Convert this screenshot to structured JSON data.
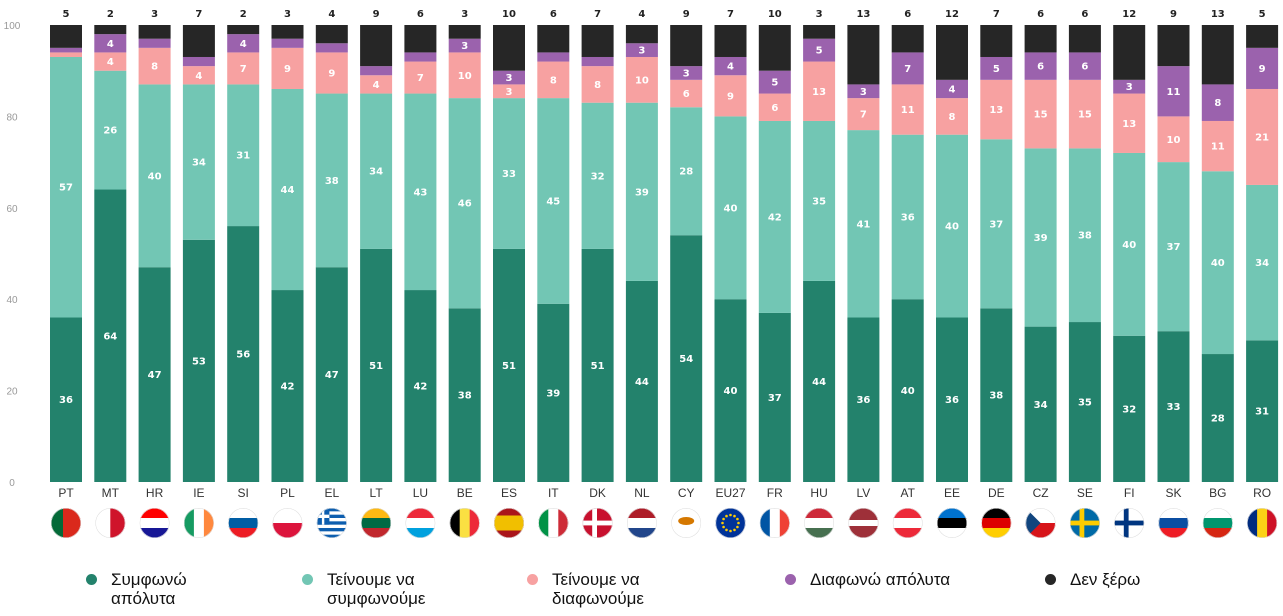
{
  "chart_data": {
    "type": "bar",
    "stacked": true,
    "ylim": [
      0,
      100
    ],
    "yticks": [
      0,
      20,
      40,
      60,
      80,
      100
    ],
    "categories": [
      "PT",
      "MT",
      "HR",
      "IE",
      "SI",
      "PL",
      "EL",
      "LT",
      "LU",
      "BE",
      "ES",
      "IT",
      "DK",
      "NL",
      "CY",
      "EU27",
      "FR",
      "HU",
      "LV",
      "AT",
      "EE",
      "DE",
      "CZ",
      "SE",
      "FI",
      "SK",
      "BG",
      "RO"
    ],
    "series": [
      {
        "name": "Συμφωνώ απόλυτα",
        "color": "#23826c",
        "values": [
          36,
          64,
          47,
          53,
          56,
          42,
          47,
          51,
          42,
          38,
          51,
          39,
          51,
          44,
          54,
          40,
          37,
          44,
          36,
          40,
          36,
          38,
          34,
          35,
          32,
          33,
          28,
          31
        ]
      },
      {
        "name": "Τείνουμε να συμφωνούμε",
        "color": "#72c6b4",
        "values": [
          57,
          26,
          40,
          34,
          31,
          44,
          38,
          34,
          43,
          46,
          33,
          45,
          32,
          39,
          28,
          40,
          42,
          35,
          41,
          36,
          40,
          37,
          39,
          38,
          40,
          37,
          40,
          34
        ]
      },
      {
        "name": "Τείνουμε να διαφωνούμε",
        "color": "#f7a1a1",
        "values": [
          1,
          4,
          8,
          4,
          7,
          9,
          9,
          4,
          7,
          10,
          3,
          8,
          8,
          10,
          6,
          9,
          6,
          13,
          7,
          11,
          8,
          13,
          15,
          15,
          13,
          10,
          11,
          21
        ]
      },
      {
        "name": "Διαφωνώ απόλυτα",
        "color": "#9b62ad",
        "values": [
          1,
          4,
          2,
          2,
          4,
          2,
          2,
          2,
          2,
          3,
          3,
          2,
          2,
          3,
          3,
          4,
          5,
          5,
          3,
          7,
          4,
          5,
          6,
          6,
          3,
          11,
          8,
          9
        ]
      },
      {
        "name": "Δεν ξέρω",
        "color": "#262626",
        "values": [
          5,
          2,
          3,
          7,
          2,
          3,
          4,
          9,
          6,
          3,
          10,
          6,
          7,
          4,
          9,
          7,
          10,
          3,
          13,
          6,
          12,
          7,
          6,
          6,
          12,
          9,
          13,
          5
        ]
      }
    ],
    "segment_labels_min": 3
  },
  "flag_icons": [
    "portugal-flag-icon",
    "malta-flag-icon",
    "croatia-flag-icon",
    "ireland-flag-icon",
    "slovenia-flag-icon",
    "poland-flag-icon",
    "greece-flag-icon",
    "lithuania-flag-icon",
    "luxembourg-flag-icon",
    "belgium-flag-icon",
    "spain-flag-icon",
    "italy-flag-icon",
    "denmark-flag-icon",
    "netherlands-flag-icon",
    "cyprus-flag-icon",
    "eu-flag-icon",
    "france-flag-icon",
    "hungary-flag-icon",
    "latvia-flag-icon",
    "austria-flag-icon",
    "estonia-flag-icon",
    "germany-flag-icon",
    "czechia-flag-icon",
    "sweden-flag-icon",
    "finland-flag-icon",
    "slovakia-flag-icon",
    "bulgaria-flag-icon",
    "romania-flag-icon"
  ],
  "legend": [
    {
      "label": "Συμφωνώ απόλυτα",
      "color": "#23826c"
    },
    {
      "label": "Τείνουμε να συμφωνούμε",
      "color": "#72c6b4"
    },
    {
      "label": "Τείνουμε να διαφωνούμε",
      "color": "#f7a1a1"
    },
    {
      "label": "Διαφωνώ απόλυτα",
      "color": "#9b62ad"
    },
    {
      "label": "Δεν ξέρω",
      "color": "#262626"
    }
  ]
}
